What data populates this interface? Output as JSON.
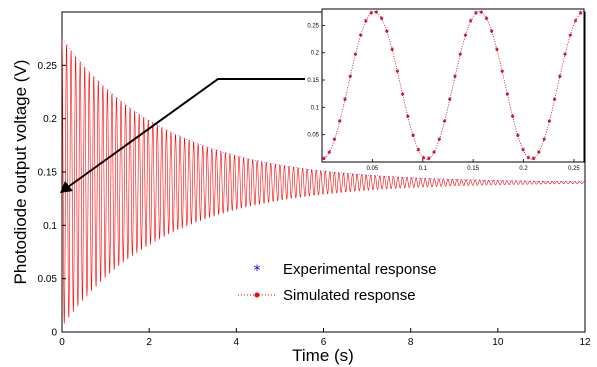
{
  "chart_data": [
    {
      "type": "line",
      "role": "main",
      "xlabel": "Time (s)",
      "ylabel": "Photodiode output voltage (V)",
      "xlim": [
        0,
        12
      ],
      "ylim": [
        0,
        0.3
      ],
      "x_ticks": [
        "0",
        "2",
        "4",
        "6",
        "8",
        "10",
        "12"
      ],
      "y_ticks": [
        "0",
        "0.05",
        "0.1",
        "0.15",
        "0.2",
        "0.25"
      ],
      "x_tick_values": [
        0,
        2,
        4,
        6,
        8,
        10,
        12
      ],
      "y_tick_values": [
        0,
        0.05,
        0.1,
        0.15,
        0.2,
        0.25
      ],
      "grid": false,
      "legend_position": "bottom-center",
      "signal": {
        "equilibrium": 0.14,
        "initial_amplitude": 0.135,
        "decay_rate": 0.42,
        "frequency_hz": 9.6,
        "t_start": 0,
        "t_end": 12
      },
      "series": [
        {
          "name": "Experimental response",
          "marker": "*",
          "color": "#0000cc"
        },
        {
          "name": "Simulated response",
          "marker": "•",
          "line": "dotted",
          "color": "#ff0000"
        }
      ]
    },
    {
      "type": "line",
      "role": "inset",
      "xlim": [
        0,
        0.26
      ],
      "ylim": [
        0,
        0.28
      ],
      "x_ticks": [
        "0.05",
        "0.1",
        "0.15",
        "0.2",
        "0.25"
      ],
      "y_ticks": [
        "0.05",
        "0.1",
        "0.15",
        "0.2",
        "0.25"
      ],
      "x_tick_values": [
        0.05,
        0.1,
        0.15,
        0.2,
        0.25
      ],
      "y_tick_values": [
        0.05,
        0.1,
        0.15,
        0.2,
        0.25
      ],
      "grid": false,
      "signal": {
        "equilibrium": 0.14,
        "amplitude": 0.135,
        "period": 0.104,
        "peak_at": 0.052
      },
      "series": [
        {
          "name": "Experimental response",
          "color": "#0000cc"
        },
        {
          "name": "Simulated response",
          "color": "#cc0000"
        }
      ]
    }
  ],
  "legend": {
    "experimental": "Experimental response",
    "simulated": "Simulated response"
  },
  "annotation": {
    "type": "arrow",
    "points_to": "t = 0 region",
    "color": "#000000"
  }
}
